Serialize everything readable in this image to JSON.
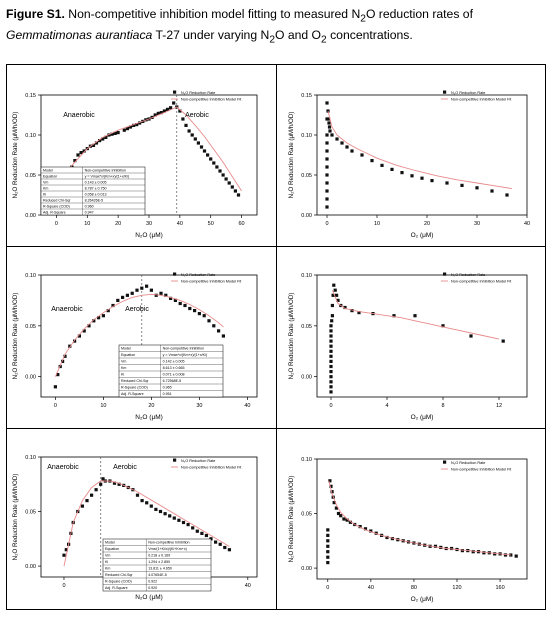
{
  "caption": {
    "figure_label": "Figure S1.",
    "line1_text": " Non-competitive inhibition model fitting to measured N",
    "sub_2a": "2",
    "line1_tail": "O reduction rates of",
    "species": "Gemmatimonas aurantiaca",
    "line2_text": " T-27 under varying N",
    "sub_2b": "2",
    "line2_mid": "O and O",
    "sub_2c": "2",
    "line2_tail": " concentrations."
  },
  "chart_data": [
    {
      "type": "scatter",
      "ylabel": "N₂O Reduction Rate (μM/h/OD)",
      "xlabel": "N₂O (μM)",
      "xlim": [
        -5,
        65
      ],
      "ylim": [
        0,
        0.15
      ],
      "xticks": [
        "0",
        "10",
        "20",
        "30",
        "40",
        "50",
        "60"
      ],
      "yticks": [
        "0.00",
        "0.05",
        "0.10",
        "0.15"
      ],
      "legend": [
        "N₂O Reduction Rate",
        "Non-competitive Inhibition Model Fit"
      ],
      "annotations": [
        "Anaerobic",
        "Aerobic"
      ],
      "divider_x": 39,
      "stats_table": [
        [
          "Model",
          "Non-competitive Inhibition"
        ],
        [
          "Equation",
          "y = Vmax*x/(Km+x)/(1+x/Ki)"
        ],
        [
          "Vm",
          "0.143 ± 0.005"
        ],
        [
          "Km",
          "8.787 ± 0.750"
        ],
        [
          "Ki",
          "0.058 ± 0.013"
        ],
        [
          "Reduced Chi-Sqr",
          "8.26426E-5"
        ],
        [
          "R-Square (COD)",
          "0.960"
        ],
        [
          "Adj. R-Square",
          "0.947"
        ]
      ],
      "series": [
        {
          "name": "N₂O Reduction Rate",
          "x": [
            1,
            1.5,
            2,
            3,
            3.5,
            4,
            5,
            6,
            7,
            8,
            9,
            10,
            11,
            12,
            13,
            14,
            15,
            16,
            17,
            18,
            19,
            20,
            22,
            23,
            24,
            25,
            26,
            27,
            28,
            29,
            30,
            31,
            32,
            33,
            34,
            35,
            36,
            37,
            38,
            39,
            40,
            41,
            42,
            43,
            44,
            45,
            46,
            47,
            48,
            49,
            50,
            51,
            52,
            53,
            54,
            55,
            56,
            57,
            58,
            59
          ],
          "y": [
            0.028,
            0.032,
            0.036,
            0.045,
            0.05,
            0.055,
            0.06,
            0.068,
            0.075,
            0.078,
            0.08,
            0.083,
            0.086,
            0.087,
            0.09,
            0.093,
            0.095,
            0.097,
            0.1,
            0.101,
            0.102,
            0.103,
            0.106,
            0.108,
            0.11,
            0.112,
            0.113,
            0.115,
            0.117,
            0.119,
            0.12,
            0.122,
            0.125,
            0.127,
            0.128,
            0.13,
            0.132,
            0.134,
            0.14,
            0.135,
            0.13,
            0.12,
            0.112,
            0.105,
            0.1,
            0.095,
            0.09,
            0.085,
            0.08,
            0.075,
            0.07,
            0.065,
            0.06,
            0.055,
            0.05,
            0.045,
            0.04,
            0.035,
            0.03,
            0.025
          ]
        },
        {
          "name": "Non-competitive Inhibition Model Fit",
          "fit": true,
          "x": [
            1,
            5,
            10,
            15,
            20,
            25,
            30,
            35,
            39,
            42,
            45,
            48,
            51,
            54,
            57,
            60
          ],
          "y": [
            0.03,
            0.062,
            0.083,
            0.097,
            0.106,
            0.113,
            0.12,
            0.128,
            0.135,
            0.125,
            0.112,
            0.098,
            0.082,
            0.066,
            0.048,
            0.03
          ]
        }
      ]
    },
    {
      "type": "scatter",
      "ylabel": "N₂O Reduction Rate (μM/h/OD)",
      "xlabel": "O₂ (μM)",
      "xlim": [
        -2,
        40
      ],
      "ylim": [
        0,
        0.15
      ],
      "xticks": [
        "0",
        "10",
        "20",
        "30",
        "40"
      ],
      "yticks": [
        "0.00",
        "0.05",
        "0.10",
        "0.15"
      ],
      "legend": [
        "N₂O Reduction Rate",
        "Non-competitive Inhibition Model Fit"
      ],
      "series": [
        {
          "name": "N₂O Reduction Rate",
          "x": [
            0,
            0,
            0,
            0,
            0,
            0,
            0,
            0,
            0,
            0,
            0,
            0,
            0.2,
            0.3,
            0.4,
            0.5,
            0.6,
            1,
            2,
            3,
            4,
            5,
            7,
            9,
            11,
            13,
            15,
            17,
            19,
            21,
            24,
            27,
            30,
            33,
            36
          ],
          "y": [
            0.01,
            0.02,
            0.03,
            0.04,
            0.05,
            0.06,
            0.07,
            0.08,
            0.09,
            0.1,
            0.12,
            0.14,
            0.13,
            0.12,
            0.115,
            0.11,
            0.105,
            0.1,
            0.095,
            0.09,
            0.085,
            0.08,
            0.075,
            0.068,
            0.062,
            0.057,
            0.053,
            0.049,
            0.046,
            0.043,
            0.04,
            0.037,
            0.034,
            0.03,
            0.025
          ]
        },
        {
          "name": "Non-competitive Inhibition Model Fit",
          "fit": true,
          "x": [
            0.2,
            1,
            2,
            4,
            6,
            8,
            10,
            14,
            18,
            22,
            26,
            30,
            34,
            37
          ],
          "y": [
            0.13,
            0.11,
            0.1,
            0.09,
            0.083,
            0.077,
            0.071,
            0.062,
            0.055,
            0.049,
            0.044,
            0.04,
            0.036,
            0.033
          ]
        }
      ]
    },
    {
      "type": "scatter",
      "ylabel": "N₂O Reduction Rate (μM/h/OD)",
      "xlabel": "N₂O (μM)",
      "xlim": [
        -3,
        42
      ],
      "ylim": [
        -0.02,
        0.1
      ],
      "xticks": [
        "0",
        "10",
        "20",
        "30",
        "40"
      ],
      "yticks": [
        "0.00",
        "0.05",
        "0.10"
      ],
      "legend": [
        "N₂O Reduction Rate",
        "Non-competitive Inhibition Model Fit"
      ],
      "annotations": [
        "Anaerobic",
        "Aerobic"
      ],
      "divider_x": 18,
      "stats_table": [
        [
          "Model",
          "Non-competitive Inhibition"
        ],
        [
          "Equation",
          "y = Vmax*x/(Km+x)/(1+x/Ki)"
        ],
        [
          "Vm",
          "0.142 ± 0.005"
        ],
        [
          "Km",
          "8.613 ± 0.665"
        ],
        [
          "Ki",
          "0.071 ± 0.008"
        ],
        [
          "Reduced Chi-Sqr",
          "6.72568E-5"
        ],
        [
          "R-Square (COD)",
          "0.965"
        ],
        [
          "Adj. R-Square",
          "0.951"
        ]
      ],
      "series": [
        {
          "name": "N₂O Reduction Rate",
          "x": [
            0,
            0.5,
            1,
            1.5,
            2,
            3,
            4,
            5,
            6,
            7,
            8,
            9,
            10,
            11,
            12,
            13,
            14,
            15,
            16,
            17,
            18,
            19,
            20,
            21,
            22,
            23,
            24,
            25,
            26,
            27,
            28,
            29,
            30,
            31,
            32,
            33,
            34,
            35
          ],
          "y": [
            -0.01,
            0.002,
            0.01,
            0.015,
            0.02,
            0.03,
            0.035,
            0.04,
            0.045,
            0.05,
            0.055,
            0.058,
            0.06,
            0.065,
            0.07,
            0.075,
            0.078,
            0.08,
            0.082,
            0.085,
            0.087,
            0.089,
            0.085,
            0.08,
            0.082,
            0.08,
            0.077,
            0.075,
            0.072,
            0.07,
            0.067,
            0.065,
            0.062,
            0.06,
            0.055,
            0.05,
            0.045,
            0.04
          ]
        },
        {
          "name": "Non-competitive Inhibition Model Fit",
          "fit": true,
          "x": [
            0,
            2,
            4,
            6,
            8,
            10,
            12,
            14,
            16,
            18,
            20,
            22,
            24,
            26,
            28,
            30,
            32,
            34,
            35
          ],
          "y": [
            0,
            0.022,
            0.036,
            0.047,
            0.056,
            0.063,
            0.069,
            0.074,
            0.078,
            0.08,
            0.081,
            0.08,
            0.078,
            0.075,
            0.071,
            0.066,
            0.06,
            0.053,
            0.049
          ]
        }
      ]
    },
    {
      "type": "scatter",
      "ylabel": "N₂O Reduction Rate (μM/h/OD)",
      "xlabel": "O₂ (μM)",
      "xlim": [
        -1,
        14
      ],
      "ylim": [
        -0.02,
        0.1
      ],
      "xticks": [
        "0",
        "4",
        "8",
        "12"
      ],
      "yticks": [
        "0.00",
        "0.05",
        "0.10"
      ],
      "legend": [
        "N₂O Reduction Rate",
        "Non-competitive Inhibition Model Fit"
      ],
      "series": [
        {
          "name": "N₂O Reduction Rate",
          "x": [
            0,
            0,
            0,
            0,
            0,
            0,
            0,
            0,
            0,
            0,
            0,
            0,
            0,
            0,
            0.05,
            0.1,
            0.1,
            0.15,
            0.2,
            0.3,
            0.4,
            0.5,
            0.7,
            1,
            1.5,
            2,
            3,
            4.5,
            6,
            8,
            10,
            12.3
          ],
          "y": [
            -0.015,
            -0.01,
            -0.005,
            0,
            0.005,
            0.01,
            0.015,
            0.02,
            0.025,
            0.03,
            0.035,
            0.04,
            0.045,
            0.05,
            0.055,
            0.06,
            0.07,
            0.08,
            0.09,
            0.085,
            0.08,
            0.075,
            0.07,
            0.068,
            0.065,
            0.063,
            0.062,
            0.06,
            0.06,
            0.05,
            0.04,
            0.035
          ]
        },
        {
          "name": "Non-competitive Inhibition Model Fit",
          "fit": true,
          "x": [
            0.1,
            0.5,
            1,
            2,
            3,
            4,
            5,
            6,
            7,
            8,
            9,
            10,
            11,
            12
          ],
          "y": [
            0.085,
            0.072,
            0.067,
            0.064,
            0.062,
            0.06,
            0.058,
            0.055,
            0.052,
            0.049,
            0.046,
            0.043,
            0.04,
            0.037
          ]
        }
      ]
    },
    {
      "type": "scatter",
      "ylabel": "N₂O Reduction Rate (μM/h/OD)",
      "xlabel": "N₂O (μM)",
      "xlim": [
        -5,
        42
      ],
      "ylim": [
        -0.01,
        0.1
      ],
      "xticks": [
        "0",
        "10",
        "20",
        "30",
        "40"
      ],
      "yticks": [
        "0.00",
        "0.05",
        "0.10"
      ],
      "legend": [
        "N₂O Reduction Rate",
        "Non-competitive Inhibition Model Fit"
      ],
      "annotations": [
        "Anaerobic",
        "Aerobic"
      ],
      "divider_x": 8,
      "stats_table": [
        [
          "Model",
          "Non-competitive Inhibition"
        ],
        [
          "Equation",
          "Vmx/(1+Ki/x)/(Ki+Km+x)"
        ],
        [
          "Vm",
          "0.218 ± 0.169"
        ],
        [
          "Ki",
          "1.294 ± 2.850"
        ],
        [
          "Km",
          "13.811 ± 4.650"
        ],
        [
          "Reduced Chi-Sqr",
          "4.07654E-5"
        ],
        [
          "R-Square (COD)",
          "0.922"
        ],
        [
          "Adj. R-Square",
          "0.920"
        ]
      ],
      "series": [
        {
          "name": "N₂O Reduction Rate",
          "x": [
            0,
            0.5,
            1,
            1.5,
            2,
            3,
            4,
            5,
            6,
            7,
            8,
            8.5,
            9,
            10,
            11,
            12,
            13,
            14,
            15,
            16,
            17,
            18,
            19,
            20,
            21,
            22,
            23,
            24,
            25,
            26,
            27,
            28,
            29,
            30,
            31,
            32,
            33,
            34,
            35,
            36
          ],
          "y": [
            0.01,
            0.015,
            0.02,
            0.03,
            0.04,
            0.05,
            0.055,
            0.06,
            0.065,
            0.07,
            0.075,
            0.08,
            0.078,
            0.078,
            0.076,
            0.075,
            0.074,
            0.072,
            0.07,
            0.065,
            0.06,
            0.058,
            0.055,
            0.052,
            0.05,
            0.048,
            0.046,
            0.044,
            0.042,
            0.04,
            0.038,
            0.035,
            0.032,
            0.03,
            0.028,
            0.025,
            0.022,
            0.02,
            0.017,
            0.015
          ]
        },
        {
          "name": "Non-competitive Inhibition Model Fit",
          "fit": true,
          "x": [
            0,
            2,
            4,
            6,
            8,
            10,
            12,
            14,
            16,
            18,
            20,
            22,
            24,
            26,
            28,
            30,
            32,
            34,
            36
          ],
          "y": [
            0,
            0.04,
            0.06,
            0.072,
            0.078,
            0.078,
            0.076,
            0.072,
            0.068,
            0.063,
            0.058,
            0.053,
            0.048,
            0.043,
            0.038,
            0.033,
            0.028,
            0.023,
            0.018
          ]
        }
      ]
    },
    {
      "type": "scatter",
      "ylabel": "N₂O Reduction Rate (μM/h/OD)",
      "xlabel": "O₂ (μM)",
      "xlim": [
        -10,
        185
      ],
      "ylim": [
        -0.01,
        0.1
      ],
      "xticks": [
        "0",
        "40",
        "80",
        "120",
        "160"
      ],
      "yticks": [
        "0.00",
        "0.05",
        "0.10"
      ],
      "legend": [
        "N₂O Reduction Rate",
        "Non-competitive Inhibition Model Fit"
      ],
      "series": [
        {
          "name": "N₂O Reduction Rate",
          "x": [
            0,
            0,
            0,
            0,
            0,
            0,
            0,
            2,
            3,
            4,
            5,
            6,
            8,
            10,
            12,
            15,
            18,
            21,
            25,
            30,
            35,
            40,
            45,
            50,
            55,
            60,
            65,
            70,
            75,
            80,
            85,
            90,
            95,
            100,
            105,
            110,
            115,
            120,
            125,
            130,
            135,
            140,
            145,
            150,
            155,
            160,
            165,
            170,
            175
          ],
          "y": [
            0.005,
            0.01,
            0.015,
            0.02,
            0.025,
            0.03,
            0.035,
            0.08,
            0.075,
            0.07,
            0.065,
            0.06,
            0.055,
            0.05,
            0.048,
            0.045,
            0.044,
            0.042,
            0.04,
            0.038,
            0.036,
            0.034,
            0.032,
            0.03,
            0.028,
            0.027,
            0.026,
            0.025,
            0.024,
            0.023,
            0.022,
            0.021,
            0.02,
            0.02,
            0.019,
            0.018,
            0.018,
            0.017,
            0.016,
            0.016,
            0.015,
            0.015,
            0.014,
            0.014,
            0.013,
            0.013,
            0.012,
            0.012,
            0.011
          ]
        },
        {
          "name": "Non-competitive Inhibition Model Fit",
          "fit": true,
          "x": [
            1,
            4,
            8,
            12,
            18,
            25,
            35,
            50,
            70,
            90,
            110,
            130,
            150,
            170
          ],
          "y": [
            0.08,
            0.068,
            0.058,
            0.051,
            0.045,
            0.04,
            0.035,
            0.03,
            0.025,
            0.021,
            0.018,
            0.016,
            0.014,
            0.012
          ]
        }
      ]
    }
  ]
}
